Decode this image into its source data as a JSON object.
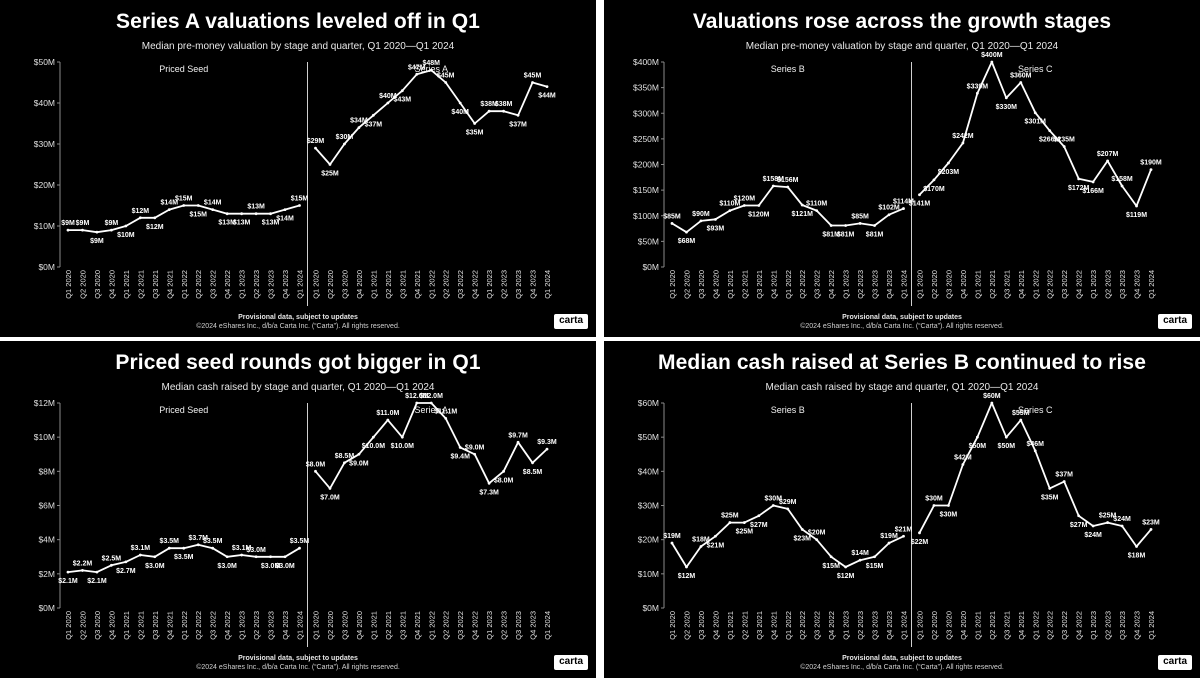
{
  "chart_data": [
    {
      "type": "line",
      "title": "Series A valuations leveled off in Q1",
      "subtitle": "Median pre-money valuation by stage and quarter, Q1 2020—Q1 2024",
      "footer_note": "Provisional data, subject to updates",
      "copyright": "©2024 eShares Inc., d/b/a Carta Inc. (“Carta”). All rights reserved.",
      "logo": "carta",
      "ylim": [
        0,
        50
      ],
      "yticks": [
        0,
        10,
        20,
        30,
        40,
        50
      ],
      "ytick_labels": [
        "$0M",
        "$10M",
        "$20M",
        "$30M",
        "$40M",
        "$50M"
      ],
      "categories": [
        "Q1 2020",
        "Q2 2020",
        "Q3 2020",
        "Q4 2020",
        "Q1 2021",
        "Q2 2021",
        "Q3 2021",
        "Q4 2021",
        "Q1 2022",
        "Q2 2022",
        "Q3 2022",
        "Q4 2022",
        "Q1 2023",
        "Q2 2023",
        "Q3 2023",
        "Q4 2023",
        "Q1 2024"
      ],
      "series": [
        {
          "name": "Priced Seed",
          "values": [
            9,
            9,
            8.5,
            9,
            10,
            12,
            12,
            14,
            15,
            15,
            14,
            13,
            13,
            13,
            13,
            14,
            15
          ],
          "labels": [
            "$9M",
            "$9M",
            "$9M",
            "$9M",
            "$10M",
            "$12M",
            "$12M",
            "$14M",
            "$15M",
            "$15M",
            "$14M",
            "$13M",
            "$13M",
            "$13M",
            "$13M",
            "$14M",
            "$15M"
          ],
          "label_pos": [
            "a",
            "a",
            "b",
            "a",
            "b",
            "a",
            "b",
            "a",
            "a",
            "b",
            "a",
            "b",
            "b",
            "a",
            "b",
            "b",
            "a"
          ]
        },
        {
          "name": "Series A",
          "values": [
            29,
            25,
            30,
            34,
            37,
            40,
            43,
            47,
            48,
            45,
            40,
            35,
            38,
            38,
            37,
            45,
            44
          ],
          "labels": [
            "$29M",
            "$25M",
            "$30M",
            "$34M",
            "$37M",
            "$40M",
            "$43M",
            "$47M",
            "$48M",
            "$45M",
            "$40M",
            "$35M",
            "$38M",
            "$38M",
            "$37M",
            "$45M",
            "$44M"
          ],
          "label_pos": [
            "a",
            "b",
            "a",
            "a",
            "b",
            "a",
            "b",
            "a",
            "a",
            "a",
            "b",
            "b",
            "a",
            "a",
            "b",
            "a",
            "b"
          ]
        }
      ]
    },
    {
      "type": "line",
      "title": "Valuations rose across the growth stages",
      "subtitle": "Median pre-money valuation by stage and quarter, Q1 2020—Q1 2024",
      "footer_note": "Provisional data, subject to updates",
      "copyright": "©2024 eShares Inc., d/b/a Carta Inc. (“Carta”). All rights reserved.",
      "logo": "carta",
      "ylim": [
        0,
        400
      ],
      "yticks": [
        0,
        50,
        100,
        150,
        200,
        250,
        300,
        350,
        400
      ],
      "ytick_labels": [
        "$0M",
        "$50M",
        "$100M",
        "$150M",
        "$200M",
        "$250M",
        "$300M",
        "$350M",
        "$400M"
      ],
      "categories": [
        "Q1 2020",
        "Q2 2020",
        "Q3 2020",
        "Q4 2020",
        "Q1 2021",
        "Q2 2021",
        "Q3 2021",
        "Q4 2021",
        "Q1 2022",
        "Q2 2022",
        "Q3 2022",
        "Q4 2022",
        "Q1 2023",
        "Q2 2023",
        "Q3 2023",
        "Q4 2023",
        "Q1 2024"
      ],
      "series": [
        {
          "name": "Series B",
          "values": [
            85,
            68,
            90,
            93,
            110,
            120,
            120,
            158,
            156,
            121,
            110,
            81,
            81,
            85,
            81,
            102,
            114
          ],
          "labels": [
            "$85M",
            "$68M",
            "$90M",
            "$93M",
            "$110M",
            "$120M",
            "$120M",
            "$158M",
            "$156M",
            "$121M",
            "$110M",
            "$81M",
            "$81M",
            "$85M",
            "$81M",
            "$102M",
            "$114M"
          ],
          "label_pos": [
            "a",
            "b",
            "a",
            "b",
            "a",
            "a",
            "b",
            "a",
            "a",
            "b",
            "a",
            "b",
            "b",
            "a",
            "b",
            "a",
            "a"
          ]
        },
        {
          "name": "Series C",
          "values": [
            141,
            170,
            203,
            242,
            339,
            400,
            330,
            360,
            301,
            266,
            235,
            172,
            166,
            207,
            158,
            119,
            190
          ],
          "labels": [
            "$141M",
            "$170M",
            "$203M",
            "$242M",
            "$339M",
            "$400M",
            "$330M",
            "$360M",
            "$301M",
            "$266M",
            "$235M",
            "$172M",
            "$166M",
            "$207M",
            "$158M",
            "$119M",
            "$190M"
          ],
          "label_pos": [
            "b",
            "b",
            "b",
            "a",
            "a",
            "a",
            "b",
            "a",
            "b",
            "b",
            "a",
            "b",
            "b",
            "a",
            "a",
            "b",
            "a"
          ]
        }
      ]
    },
    {
      "type": "line",
      "title": "Priced seed rounds got bigger in Q1",
      "subtitle": "Median cash raised by stage and quarter, Q1 2020—Q1 2024",
      "footer_note": "Provisional data, subject to updates",
      "copyright": "©2024 eShares Inc., d/b/a Carta Inc. (“Carta”). All rights reserved.",
      "logo": "carta",
      "ylim": [
        0,
        12
      ],
      "yticks": [
        0,
        2,
        4,
        6,
        8,
        10,
        12
      ],
      "ytick_labels": [
        "$0M",
        "$2M",
        "$4M",
        "$6M",
        "$8M",
        "$10M",
        "$12M"
      ],
      "categories": [
        "Q1 2020",
        "Q2 2020",
        "Q3 2020",
        "Q4 2020",
        "Q1 2021",
        "Q2 2021",
        "Q3 2021",
        "Q4 2021",
        "Q1 2022",
        "Q2 2022",
        "Q3 2022",
        "Q4 2022",
        "Q1 2023",
        "Q2 2023",
        "Q3 2023",
        "Q4 2023",
        "Q1 2024"
      ],
      "series": [
        {
          "name": "Priced Seed",
          "values": [
            2.1,
            2.2,
            2.1,
            2.5,
            2.7,
            3.1,
            3.0,
            3.5,
            3.5,
            3.7,
            3.5,
            3.0,
            3.1,
            3.0,
            3.0,
            3.0,
            3.5
          ],
          "labels": [
            "$2.1M",
            "$2.2M",
            "$2.1M",
            "$2.5M",
            "$2.7M",
            "$3.1M",
            "$3.0M",
            "$3.5M",
            "$3.5M",
            "$3.7M",
            "$3.5M",
            "$3.0M",
            "$3.1M",
            "$3.0M",
            "$3.0M",
            "$3.0M",
            "$3.5M"
          ],
          "label_pos": [
            "b",
            "a",
            "b",
            "a",
            "b",
            "a",
            "b",
            "a",
            "b",
            "a",
            "a",
            "b",
            "a",
            "a",
            "b",
            "b",
            "a"
          ]
        },
        {
          "name": "Series A",
          "values": [
            8.0,
            7.0,
            8.5,
            9.0,
            10.0,
            11.0,
            10.0,
            12.0,
            12.0,
            11.1,
            9.4,
            9.0,
            7.3,
            8.0,
            9.7,
            8.5,
            9.3
          ],
          "labels": [
            "$8.0M",
            "$7.0M",
            "$8.5M",
            "$9.0M",
            "$10.0M",
            "$11.0M",
            "$10.0M",
            "$12.0M",
            "$12.0M",
            "$11.1M",
            "$9.4M",
            "$9.0M",
            "$7.3M",
            "$8.0M",
            "$9.7M",
            "$8.5M",
            "$9.3M"
          ],
          "label_pos": [
            "a",
            "b",
            "a",
            "b",
            "b",
            "a",
            "b",
            "a",
            "a",
            "a",
            "b",
            "a",
            "b",
            "b",
            "a",
            "b",
            "a"
          ]
        }
      ]
    },
    {
      "type": "line",
      "title": "Median cash raised at Series B continued to rise",
      "subtitle": "Median cash raised by stage and quarter, Q1 2020—Q1 2024",
      "footer_note": "Provisional data, subject to updates",
      "copyright": "©2024 eShares Inc., d/b/a Carta Inc. (“Carta”). All rights reserved.",
      "logo": "carta",
      "ylim": [
        0,
        60
      ],
      "yticks": [
        0,
        10,
        20,
        30,
        40,
        50,
        60
      ],
      "ytick_labels": [
        "$0M",
        "$10M",
        "$20M",
        "$30M",
        "$40M",
        "$50M",
        "$60M"
      ],
      "categories": [
        "Q1 2020",
        "Q2 2020",
        "Q3 2020",
        "Q4 2020",
        "Q1 2021",
        "Q2 2021",
        "Q3 2021",
        "Q4 2021",
        "Q1 2022",
        "Q2 2022",
        "Q3 2022",
        "Q4 2022",
        "Q1 2023",
        "Q2 2023",
        "Q3 2023",
        "Q4 2023",
        "Q1 2024"
      ],
      "series": [
        {
          "name": "Series B",
          "values": [
            19,
            12,
            18,
            21,
            25,
            25,
            27,
            30,
            29,
            23,
            20,
            15,
            12,
            14,
            15,
            19,
            21
          ],
          "labels": [
            "$19M",
            "$12M",
            "$18M",
            "$21M",
            "$25M",
            "$25M",
            "$27M",
            "$30M",
            "$29M",
            "$23M",
            "$20M",
            "$15M",
            "$12M",
            "$14M",
            "$15M",
            "$19M",
            "$21M"
          ],
          "label_pos": [
            "a",
            "b",
            "a",
            "b",
            "a",
            "b",
            "b",
            "a",
            "a",
            "b",
            "a",
            "b",
            "b",
            "a",
            "b",
            "a",
            "a"
          ]
        },
        {
          "name": "Series C",
          "values": [
            22,
            30,
            30,
            42,
            50,
            60,
            50,
            55,
            46,
            35,
            37,
            27,
            24,
            25,
            24,
            18,
            23
          ],
          "labels": [
            "$22M",
            "$30M",
            "$30M",
            "$42M",
            "$50M",
            "$60M",
            "$50M",
            "$55M",
            "$46M",
            "$35M",
            "$37M",
            "$27M",
            "$24M",
            "$25M",
            "$24M",
            "$18M",
            "$23M"
          ],
          "label_pos": [
            "b",
            "a",
            "b",
            "a",
            "b",
            "a",
            "b",
            "a",
            "a",
            "b",
            "a",
            "b",
            "b",
            "a",
            "a",
            "b",
            "a"
          ]
        }
      ]
    }
  ]
}
